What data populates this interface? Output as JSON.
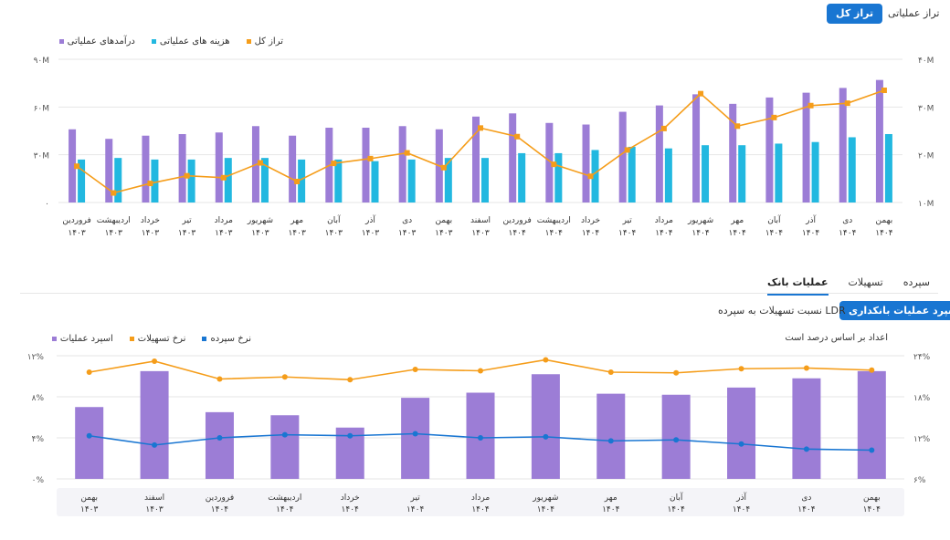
{
  "colors": {
    "accent": "#1976d2",
    "revenue": "#9c7dd6",
    "cost": "#22b8e0",
    "total": "#f59d1a",
    "spread": "#9c7dd6",
    "lending_rate": "#f59d1a",
    "deposit_rate": "#1976d2"
  },
  "top_tabs": {
    "active": "تراز کل",
    "other": "تراز عملیاتی"
  },
  "chart1_legend": {
    "total": "تراز کل",
    "cost": "هزینه های عملیاتی",
    "revenue": "درآمدهای عملیاتی"
  },
  "sub_tabs": [
    "سپرده",
    "تسهیلات",
    "عملیات بانک"
  ],
  "sub_tab_active": "عملیات بانک",
  "buttons": {
    "spread": "اسپرد عملیات بانکداری",
    "ldr": "نسبت تسهیلات به سپرده LDR"
  },
  "chart2_note": "اعداد بر اساس درصد است",
  "chart2_legend": {
    "spread": "اسپرد عملیات",
    "lending": "نرخ تسهیلات",
    "deposit": "نرخ سپرده"
  },
  "chart_data": [
    {
      "type": "bar",
      "title": "",
      "categories": [
        [
          "فروردین",
          "۱۴۰۳"
        ],
        [
          "اردیبهشت",
          "۱۴۰۳"
        ],
        [
          "خرداد",
          "۱۴۰۳"
        ],
        [
          "تیر",
          "۱۴۰۳"
        ],
        [
          "مرداد",
          "۱۴۰۳"
        ],
        [
          "شهریور",
          "۱۴۰۳"
        ],
        [
          "مهر",
          "۱۴۰۳"
        ],
        [
          "آبان",
          "۱۴۰۳"
        ],
        [
          "آذر",
          "۱۴۰۳"
        ],
        [
          "دی",
          "۱۴۰۳"
        ],
        [
          "بهمن",
          "۱۴۰۳"
        ],
        [
          "اسفند",
          "۱۴۰۳"
        ],
        [
          "فروردین",
          "۱۴۰۴"
        ],
        [
          "اردیبهشت",
          "۱۴۰۴"
        ],
        [
          "خرداد",
          "۱۴۰۴"
        ],
        [
          "تیر",
          "۱۴۰۴"
        ],
        [
          "مرداد",
          "۱۴۰۴"
        ],
        [
          "شهریور",
          "۱۴۰۴"
        ],
        [
          "مهر",
          "۱۴۰۴"
        ],
        [
          "آبان",
          "۱۴۰۴"
        ],
        [
          "آذر",
          "۱۴۰۴"
        ],
        [
          "دی",
          "۱۴۰۴"
        ],
        [
          "بهمن",
          "۱۴۰۴"
        ]
      ],
      "series": [
        {
          "name": "درآمدهای عملیاتی",
          "axis": "left",
          "kind": "bar",
          "values": [
            46,
            40,
            42,
            43,
            44,
            48,
            42,
            47,
            47,
            48,
            46,
            54,
            56,
            50,
            49,
            57,
            61,
            68,
            62,
            66,
            69,
            72,
            77
          ]
        },
        {
          "name": "هزینه های عملیاتی",
          "axis": "left",
          "kind": "bar",
          "values": [
            27,
            28,
            27,
            27,
            28,
            28,
            27,
            27,
            26,
            27,
            28,
            28,
            31,
            31,
            33,
            35,
            34,
            36,
            36,
            37,
            38,
            41,
            43
          ]
        },
        {
          "name": "تراز کل",
          "axis": "right",
          "kind": "line",
          "values": [
            17.6,
            12,
            14,
            15.6,
            15.2,
            18.3,
            14.4,
            18.2,
            19.2,
            20.4,
            17.3,
            25.6,
            23.8,
            18,
            15.5,
            21,
            25.5,
            32.8,
            26,
            27.8,
            30.3,
            30.8,
            33.5
          ]
        }
      ],
      "y_left": {
        "ticks": [
          "۰",
          "۳۰M",
          "۶۰M",
          "۹۰M"
        ],
        "range": [
          0,
          90
        ]
      },
      "y_right": {
        "ticks": [
          "۱۰M",
          "۲۰M",
          "۳۰M",
          "۴۰M"
        ],
        "range": [
          10,
          40
        ]
      }
    },
    {
      "type": "bar",
      "title": "",
      "categories": [
        [
          "بهمن",
          "۱۴۰۳"
        ],
        [
          "اسفند",
          "۱۴۰۳"
        ],
        [
          "فروردین",
          "۱۴۰۴"
        ],
        [
          "اردیبهشت",
          "۱۴۰۴"
        ],
        [
          "خرداد",
          "۱۴۰۴"
        ],
        [
          "تیر",
          "۱۴۰۴"
        ],
        [
          "مرداد",
          "۱۴۰۴"
        ],
        [
          "شهریور",
          "۱۴۰۴"
        ],
        [
          "مهر",
          "۱۴۰۴"
        ],
        [
          "آبان",
          "۱۴۰۴"
        ],
        [
          "آذر",
          "۱۴۰۴"
        ],
        [
          "دی",
          "۱۴۰۴"
        ],
        [
          "بهمن",
          "۱۴۰۴"
        ]
      ],
      "series": [
        {
          "name": "اسپرد عملیات",
          "axis": "left",
          "kind": "bar",
          "values": [
            7,
            10.5,
            6.5,
            6.2,
            5,
            7.9,
            8.4,
            10.2,
            8.3,
            8.2,
            8.9,
            9.8,
            10.5
          ]
        },
        {
          "name": "نرخ سپرده",
          "axis": "left",
          "kind": "line",
          "values": [
            4.2,
            3.3,
            4,
            4.3,
            4.2,
            4.4,
            4,
            4.1,
            3.7,
            3.8,
            3.4,
            2.9,
            2.8
          ]
        },
        {
          "name": "نرخ تسهیلات",
          "axis": "right",
          "kind": "line",
          "values": [
            21.6,
            23.2,
            20.6,
            20.9,
            20.5,
            22,
            21.8,
            23.4,
            21.6,
            21.5,
            22.1,
            22.2,
            21.9
          ]
        }
      ],
      "y_left": {
        "ticks": [
          "۰%",
          "۴%",
          "۸%",
          "۱۲%"
        ],
        "range": [
          0,
          12
        ]
      },
      "y_right": {
        "ticks": [
          "۶%",
          "۱۲%",
          "۱۸%",
          "۲۴%"
        ],
        "range": [
          6,
          24
        ]
      }
    }
  ]
}
